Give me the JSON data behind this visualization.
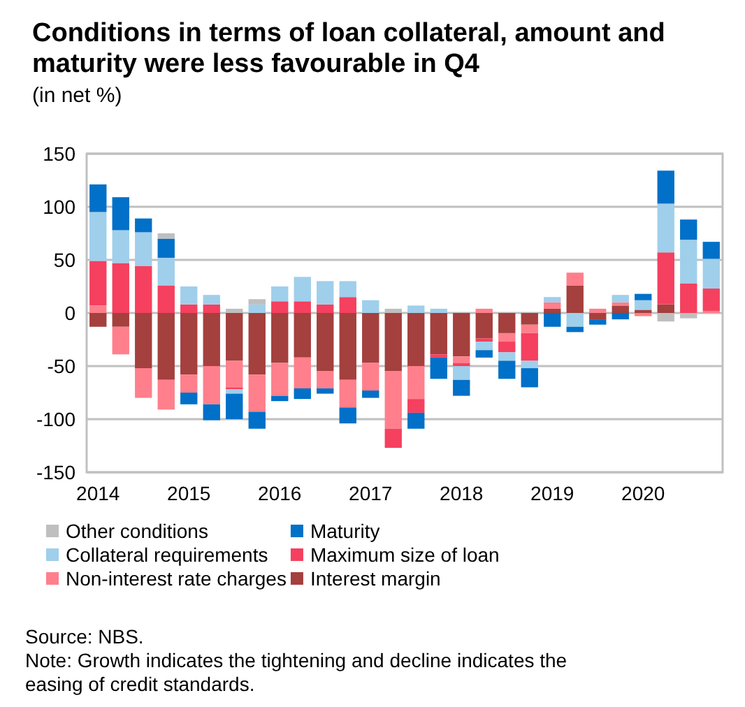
{
  "chart_data": {
    "type": "bar",
    "stacked": true,
    "title": "Conditions in terms of loan collateral, amount and maturity were less favourable in Q4",
    "subtitle": "(in net %)",
    "categories": [
      "2014",
      null,
      null,
      null,
      "2015",
      null,
      null,
      null,
      "2016",
      null,
      null,
      null,
      "2017",
      null,
      null,
      null,
      "2018",
      null,
      null,
      null,
      "2019",
      null,
      null,
      null,
      "2020",
      null,
      null,
      null
    ],
    "series": [
      {
        "name": "Interest margin",
        "color": "#a4403e",
        "values": [
          -13,
          -13,
          -52,
          -63,
          -58,
          -50,
          -45,
          -58,
          -47,
          -42,
          -55,
          -63,
          -47,
          -55,
          -50,
          -39,
          -41,
          -24,
          -19,
          -11,
          4,
          26,
          -6,
          7,
          3,
          8,
          null,
          null
        ]
      },
      {
        "name": "Non-interest rate charges",
        "color": "#ff7f8c",
        "values": [
          7,
          -26,
          -28,
          -28,
          -17,
          -36,
          -25,
          -35,
          -31,
          -29,
          -16,
          -26,
          -26,
          -54,
          -31,
          null,
          -6,
          4,
          -8,
          -8,
          6,
          12,
          4,
          3,
          -3,
          null,
          null,
          2
        ]
      },
      {
        "name": "Maximum size of loan",
        "color": "#f5405f",
        "values": [
          42,
          47,
          44,
          26,
          8,
          8,
          -2,
          null,
          11,
          11,
          8,
          15,
          null,
          -18,
          -13,
          -3,
          -3,
          -3,
          -10,
          -26,
          null,
          null,
          null,
          null,
          null,
          49,
          28,
          21
        ]
      },
      {
        "name": "Collateral requirements",
        "color": "#9fcfeb",
        "values": [
          46,
          31,
          32,
          26,
          17,
          9,
          -4,
          8,
          14,
          23,
          22,
          15,
          12,
          null,
          7,
          4,
          -13,
          -8,
          -8,
          -7,
          5,
          -13,
          null,
          7,
          9,
          46,
          41,
          28
        ]
      },
      {
        "name": "Maturity",
        "color": "#0070c8",
        "values": [
          26,
          31,
          13,
          18,
          -11,
          -15,
          -24,
          -16,
          -5,
          -10,
          -5,
          -15,
          -7,
          null,
          -15,
          -20,
          -15,
          -7,
          -17,
          -18,
          -13,
          -5,
          -5,
          -6,
          6,
          31,
          19,
          16
        ]
      },
      {
        "name": "Other conditions",
        "color": "#bfbfbf",
        "values": [
          null,
          null,
          null,
          5,
          null,
          null,
          4,
          5,
          null,
          null,
          null,
          null,
          null,
          4,
          null,
          null,
          null,
          null,
          null,
          null,
          null,
          null,
          null,
          null,
          null,
          -8,
          -5,
          null
        ]
      }
    ],
    "ylim": [
      -150,
      150
    ],
    "yticks": [
      -150,
      -100,
      -50,
      0,
      50,
      100,
      150
    ],
    "grid": "y",
    "legend": "bottom",
    "annotations": [
      "Source: NBS.",
      "Note: Growth indicates the tightening and decline indicates the easing of credit standards."
    ]
  }
}
